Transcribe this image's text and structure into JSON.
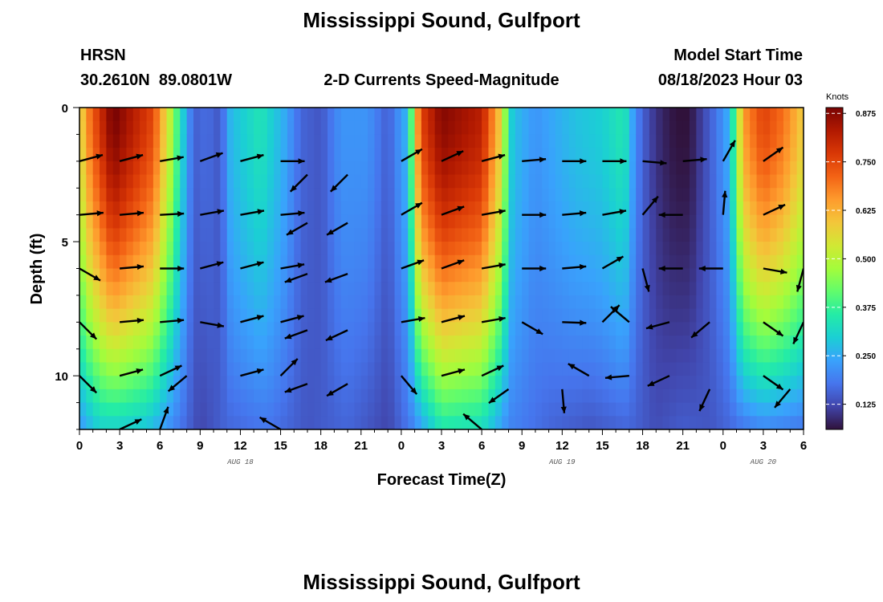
{
  "header": {
    "title": "Mississippi Sound, Gulfport",
    "station_code": "HRSN",
    "coords": "30.2610N  89.0801W",
    "subtitle": "2-D Currents Speed-Magnitude",
    "model_label": "Model Start Time",
    "model_time": "08/18/2023 Hour 03"
  },
  "footer": {
    "title_repeat": "Mississippi Sound, Gulfport"
  },
  "colors": {
    "colormap": [
      "#30123b",
      "#4145ab",
      "#4675ed",
      "#39a2fc",
      "#1bcfd4",
      "#24eca6",
      "#61fc6c",
      "#a4fc3b",
      "#d1e834",
      "#f3c63a",
      "#fe9b2d",
      "#f36315",
      "#d93806",
      "#b11901",
      "#7a0403"
    ],
    "arrow": "#000000"
  },
  "chart_data": {
    "type": "heatmap",
    "title": "2-D Currents Speed-Magnitude",
    "xlabel": "Forecast Time(Z)",
    "ylabel": "Depth (ft)",
    "x_range": [
      0,
      54
    ],
    "y_range": [
      0,
      12
    ],
    "y_inverted": true,
    "x_ticks": [
      0,
      3,
      6,
      9,
      12,
      15,
      18,
      21,
      24,
      27,
      30,
      33,
      36,
      39,
      42,
      45,
      48,
      51,
      54
    ],
    "x_tick_labels": [
      "0",
      "3",
      "6",
      "9",
      "12",
      "15",
      "18",
      "21",
      "0",
      "3",
      "6",
      "9",
      "12",
      "15",
      "18",
      "21",
      "0",
      "3",
      "6"
    ],
    "y_ticks": [
      0,
      5,
      10
    ],
    "y_tick_labels": [
      "0",
      "5",
      "10"
    ],
    "date_labels": [
      {
        "x": 12,
        "label": "AUG 18"
      },
      {
        "x": 36,
        "label": "AUG 19"
      },
      {
        "x": 51,
        "label": "AUG 20"
      }
    ],
    "colorbar": {
      "unit": "Knots",
      "range": [
        0.06,
        0.89
      ],
      "ticks": [
        0.875,
        0.75,
        0.625,
        0.5,
        0.375,
        0.25,
        0.125
      ],
      "tick_labels": [
        "0.875",
        "0.750",
        "0.625",
        "0.500",
        "0.375",
        "0.250",
        "0.125"
      ]
    },
    "speed_profile_surface": [
      {
        "t": 0,
        "v": 0.55
      },
      {
        "t": 0.8,
        "v": 0.7
      },
      {
        "t": 2.5,
        "v": 0.9
      },
      {
        "t": 5.5,
        "v": 0.75
      },
      {
        "t": 6.8,
        "v": 0.5
      },
      {
        "t": 7.6,
        "v": 0.32
      },
      {
        "t": 8.5,
        "v": 0.15
      },
      {
        "t": 9.5,
        "v": 0.17
      },
      {
        "t": 10.5,
        "v": 0.14
      },
      {
        "t": 11.3,
        "v": 0.27
      },
      {
        "t": 13.5,
        "v": 0.34
      },
      {
        "t": 15.3,
        "v": 0.25
      },
      {
        "t": 16.5,
        "v": 0.16
      },
      {
        "t": 18,
        "v": 0.14
      },
      {
        "t": 19.5,
        "v": 0.22
      },
      {
        "t": 21.5,
        "v": 0.22
      },
      {
        "t": 23,
        "v": 0.15
      },
      {
        "t": 24.5,
        "v": 0.27
      },
      {
        "t": 25.4,
        "v": 0.75
      },
      {
        "t": 27,
        "v": 0.88
      },
      {
        "t": 30,
        "v": 0.82
      },
      {
        "t": 31.3,
        "v": 0.6
      },
      {
        "t": 32.3,
        "v": 0.28
      },
      {
        "t": 34,
        "v": 0.22
      },
      {
        "t": 37,
        "v": 0.28
      },
      {
        "t": 39,
        "v": 0.3
      },
      {
        "t": 40.6,
        "v": 0.35
      },
      {
        "t": 41.5,
        "v": 0.2
      },
      {
        "t": 42.5,
        "v": 0.12
      },
      {
        "t": 43.5,
        "v": 0.08
      },
      {
        "t": 44.5,
        "v": 0.06
      },
      {
        "t": 45.5,
        "v": 0.06
      },
      {
        "t": 46.5,
        "v": 0.12
      },
      {
        "t": 47.5,
        "v": 0.18
      },
      {
        "t": 48.5,
        "v": 0.26
      },
      {
        "t": 49.5,
        "v": 0.65
      },
      {
        "t": 51,
        "v": 0.76
      },
      {
        "t": 52.5,
        "v": 0.7
      },
      {
        "t": 54,
        "v": 0.58
      }
    ],
    "speed_profile_bottom": [
      {
        "t": 0,
        "v": 0.22
      },
      {
        "t": 1.5,
        "v": 0.3
      },
      {
        "t": 3,
        "v": 0.3
      },
      {
        "t": 5,
        "v": 0.28
      },
      {
        "t": 7,
        "v": 0.2
      },
      {
        "t": 9,
        "v": 0.12
      },
      {
        "t": 11,
        "v": 0.16
      },
      {
        "t": 14,
        "v": 0.18
      },
      {
        "t": 17,
        "v": 0.14
      },
      {
        "t": 20,
        "v": 0.16
      },
      {
        "t": 23,
        "v": 0.12
      },
      {
        "t": 25,
        "v": 0.2
      },
      {
        "t": 27,
        "v": 0.34
      },
      {
        "t": 30,
        "v": 0.32
      },
      {
        "t": 32,
        "v": 0.2
      },
      {
        "t": 35,
        "v": 0.16
      },
      {
        "t": 38,
        "v": 0.14
      },
      {
        "t": 41,
        "v": 0.16
      },
      {
        "t": 43,
        "v": 0.13
      },
      {
        "t": 45,
        "v": 0.15
      },
      {
        "t": 47,
        "v": 0.14
      },
      {
        "t": 49,
        "v": 0.17
      },
      {
        "t": 51,
        "v": 0.2
      },
      {
        "t": 54,
        "v": 0.18
      }
    ],
    "vectors": [
      {
        "t": 0,
        "d": 2,
        "dir": 75
      },
      {
        "t": 3,
        "d": 2,
        "dir": 75
      },
      {
        "t": 6,
        "d": 2,
        "dir": 80
      },
      {
        "t": 9,
        "d": 2,
        "dir": 70
      },
      {
        "t": 12,
        "d": 2,
        "dir": 75
      },
      {
        "t": 15,
        "d": 2,
        "dir": 90
      },
      {
        "t": 17,
        "d": 2.5,
        "dir": 225
      },
      {
        "t": 20,
        "d": 2.5,
        "dir": 225
      },
      {
        "t": 24,
        "d": 2,
        "dir": 60
      },
      {
        "t": 27,
        "d": 2,
        "dir": 65
      },
      {
        "t": 30,
        "d": 2,
        "dir": 75
      },
      {
        "t": 33,
        "d": 2,
        "dir": 85
      },
      {
        "t": 36,
        "d": 2,
        "dir": 90
      },
      {
        "t": 39,
        "d": 2,
        "dir": 90
      },
      {
        "t": 42,
        "d": 2,
        "dir": 95
      },
      {
        "t": 45,
        "d": 2,
        "dir": 85
      },
      {
        "t": 48,
        "d": 2,
        "dir": 30
      },
      {
        "t": 51,
        "d": 2,
        "dir": 55
      },
      {
        "t": 0,
        "d": 4,
        "dir": 85
      },
      {
        "t": 3,
        "d": 4,
        "dir": 85
      },
      {
        "t": 6,
        "d": 4,
        "dir": 87
      },
      {
        "t": 9,
        "d": 4,
        "dir": 80
      },
      {
        "t": 12,
        "d": 4,
        "dir": 80
      },
      {
        "t": 15,
        "d": 4,
        "dir": 85
      },
      {
        "t": 17,
        "d": 4.3,
        "dir": 240
      },
      {
        "t": 20,
        "d": 4.3,
        "dir": 240
      },
      {
        "t": 24,
        "d": 4,
        "dir": 60
      },
      {
        "t": 27,
        "d": 4,
        "dir": 70
      },
      {
        "t": 30,
        "d": 4,
        "dir": 80
      },
      {
        "t": 33,
        "d": 4,
        "dir": 90
      },
      {
        "t": 36,
        "d": 4,
        "dir": 85
      },
      {
        "t": 39,
        "d": 4,
        "dir": 80
      },
      {
        "t": 42,
        "d": 4,
        "dir": 40
      },
      {
        "t": 45,
        "d": 4,
        "dir": 270
      },
      {
        "t": 48,
        "d": 4,
        "dir": 5
      },
      {
        "t": 51,
        "d": 4,
        "dir": 65
      },
      {
        "t": 0,
        "d": 6,
        "dir": 120
      },
      {
        "t": 3,
        "d": 6,
        "dir": 85
      },
      {
        "t": 6,
        "d": 6,
        "dir": 90
      },
      {
        "t": 9,
        "d": 6,
        "dir": 75
      },
      {
        "t": 12,
        "d": 6,
        "dir": 75
      },
      {
        "t": 15,
        "d": 6,
        "dir": 80
      },
      {
        "t": 17,
        "d": 6.2,
        "dir": 250
      },
      {
        "t": 20,
        "d": 6.2,
        "dir": 250
      },
      {
        "t": 24,
        "d": 6,
        "dir": 70
      },
      {
        "t": 27,
        "d": 6,
        "dir": 70
      },
      {
        "t": 30,
        "d": 6,
        "dir": 80
      },
      {
        "t": 33,
        "d": 6,
        "dir": 90
      },
      {
        "t": 36,
        "d": 6,
        "dir": 85
      },
      {
        "t": 39,
        "d": 6,
        "dir": 60
      },
      {
        "t": 42,
        "d": 6,
        "dir": 165
      },
      {
        "t": 45,
        "d": 6,
        "dir": 270
      },
      {
        "t": 48,
        "d": 6,
        "dir": 270
      },
      {
        "t": 51,
        "d": 6,
        "dir": 100
      },
      {
        "t": 54,
        "d": 6,
        "dir": 195
      },
      {
        "t": 0,
        "d": 8,
        "dir": 135
      },
      {
        "t": 3,
        "d": 8,
        "dir": 85
      },
      {
        "t": 6,
        "d": 8,
        "dir": 85
      },
      {
        "t": 9,
        "d": 8,
        "dir": 100
      },
      {
        "t": 12,
        "d": 8,
        "dir": 75
      },
      {
        "t": 15,
        "d": 8,
        "dir": 75
      },
      {
        "t": 17,
        "d": 8.3,
        "dir": 250
      },
      {
        "t": 20,
        "d": 8.3,
        "dir": 245
      },
      {
        "t": 24,
        "d": 8,
        "dir": 80
      },
      {
        "t": 27,
        "d": 8,
        "dir": 75
      },
      {
        "t": 30,
        "d": 8,
        "dir": 80
      },
      {
        "t": 33,
        "d": 8,
        "dir": 120
      },
      {
        "t": 36,
        "d": 8,
        "dir": 92
      },
      {
        "t": 39,
        "d": 8,
        "dir": 45
      },
      {
        "t": 41,
        "d": 8,
        "dir": 310
      },
      {
        "t": 44,
        "d": 8,
        "dir": 255
      },
      {
        "t": 47,
        "d": 8,
        "dir": 230
      },
      {
        "t": 51,
        "d": 8,
        "dir": 125
      },
      {
        "t": 54,
        "d": 8,
        "dir": 205
      },
      {
        "t": 0,
        "d": 10,
        "dir": 135
      },
      {
        "t": 3,
        "d": 10,
        "dir": 75
      },
      {
        "t": 6,
        "d": 10,
        "dir": 65
      },
      {
        "t": 8,
        "d": 10,
        "dir": 230
      },
      {
        "t": 12,
        "d": 10,
        "dir": 75
      },
      {
        "t": 15,
        "d": 10,
        "dir": 45
      },
      {
        "t": 17,
        "d": 10.3,
        "dir": 250
      },
      {
        "t": 20,
        "d": 10.3,
        "dir": 240
      },
      {
        "t": 24,
        "d": 10,
        "dir": 140
      },
      {
        "t": 27,
        "d": 10,
        "dir": 75
      },
      {
        "t": 30,
        "d": 10,
        "dir": 65
      },
      {
        "t": 32,
        "d": 10.5,
        "dir": 235
      },
      {
        "t": 36,
        "d": 10.5,
        "dir": 175
      },
      {
        "t": 38,
        "d": 10,
        "dir": 300
      },
      {
        "t": 41,
        "d": 10,
        "dir": 265
      },
      {
        "t": 44,
        "d": 10,
        "dir": 245
      },
      {
        "t": 47,
        "d": 10.5,
        "dir": 205
      },
      {
        "t": 51,
        "d": 10,
        "dir": 125
      },
      {
        "t": 53,
        "d": 10.5,
        "dir": 220
      },
      {
        "t": 3,
        "d": 12,
        "dir": 65
      },
      {
        "t": 6,
        "d": 12,
        "dir": 20
      },
      {
        "t": 15,
        "d": 12,
        "dir": 300
      },
      {
        "t": 30,
        "d": 12,
        "dir": 310
      }
    ]
  }
}
